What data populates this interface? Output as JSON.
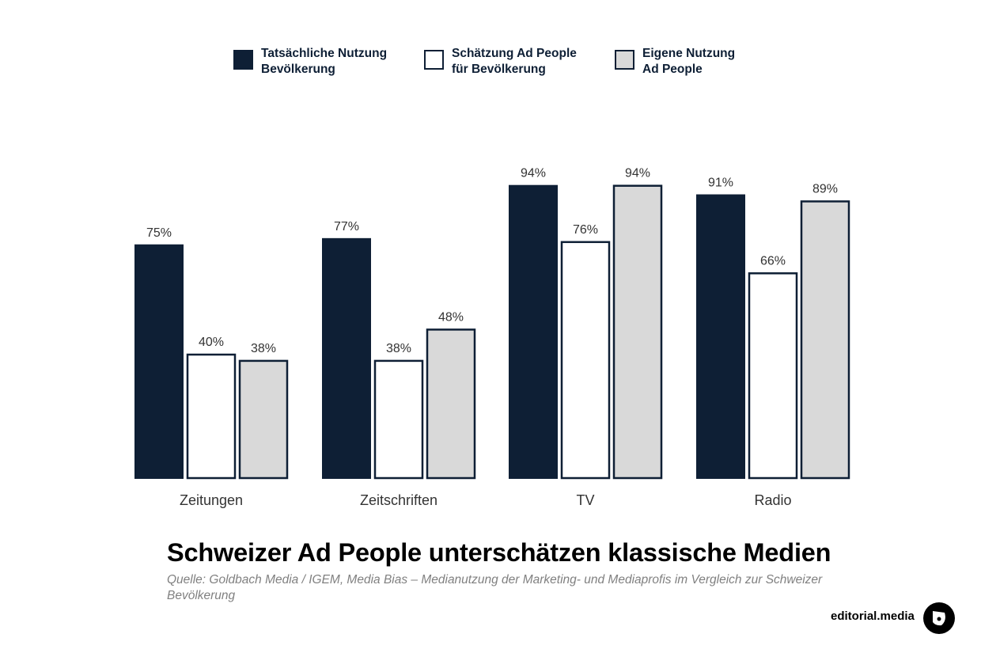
{
  "legend": [
    {
      "line1": "Tatsächliche Nutzung",
      "line2": "Bevölkerung"
    },
    {
      "line1": "Schätzung Ad People",
      "line2": "für Bevölkerung"
    },
    {
      "line1": "Eigene Nutzung",
      "line2": "Ad People"
    }
  ],
  "colors": {
    "series1": "#0e1f35",
    "series2": "#ffffff",
    "series3": "#d9d9d9",
    "outline": "#0e1f35",
    "label": "#333333"
  },
  "chart_data": {
    "type": "bar",
    "title": "Schweizer Ad People unterschätzen klassische Medien",
    "categories": [
      "Zeitungen",
      "Zeitschriften",
      "TV",
      "Radio"
    ],
    "series": [
      {
        "name": "Tatsächliche Nutzung Bevölkerung",
        "values": [
          75,
          77,
          94,
          91
        ],
        "labels": [
          "75%",
          "77%",
          "94%",
          "91%"
        ]
      },
      {
        "name": "Schätzung Ad People für Bevölkerung",
        "values": [
          40,
          38,
          76,
          66
        ],
        "labels": [
          "40%",
          "38%",
          "76%",
          "66%"
        ]
      },
      {
        "name": "Eigene Nutzung Ad People",
        "values": [
          38,
          48,
          94,
          89
        ],
        "labels": [
          "38%",
          "48%",
          "94%",
          "89%"
        ]
      }
    ],
    "ylim": [
      0,
      100
    ],
    "unit": "%",
    "grid": false,
    "legend_position": "top"
  },
  "footer": {
    "title": "Schweizer Ad People unterschätzen klassische Medien",
    "source": "Quelle: Goldbach Media / IGEM, Media Bias – Medianutzung der Marketing- und Mediaprofis im Vergleich zur Schweizer Bevölkerung",
    "brand": "editorial.media"
  }
}
